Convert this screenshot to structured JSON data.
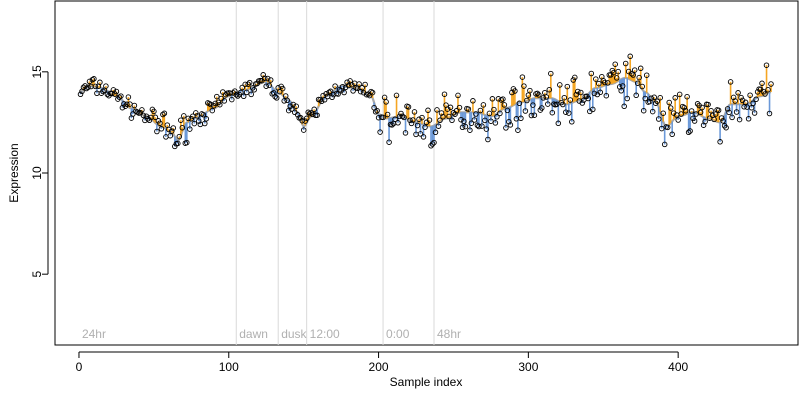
{
  "chart_data": {
    "type": "scatter",
    "title": "",
    "xlabel": "Sample index",
    "ylabel": "Expression",
    "xlim": [
      -16,
      480
    ],
    "ylim": [
      1.5,
      18.5
    ],
    "x_ticks": [
      "0",
      "100",
      "200",
      "300",
      "400"
    ],
    "x_tick_values": [
      0,
      100,
      200,
      300,
      400
    ],
    "y_ticks": [
      "5",
      "10",
      "15"
    ],
    "y_tick_values": [
      5,
      10,
      15
    ],
    "grid": false,
    "series_colors": {
      "points": "#000000",
      "increase": "#f5a623",
      "decrease": "#6a98d8",
      "fit": "#a8a8a8"
    },
    "phase_markers": [
      {
        "label": "24hr",
        "x": 0,
        "line": false
      },
      {
        "label": "dawn",
        "x": 105,
        "line": true
      },
      {
        "label": "dusk",
        "x": 133,
        "line": true
      },
      {
        "label": "12:00",
        "x": 152,
        "line": true
      },
      {
        "label": "0:00",
        "x": 203,
        "line": true
      },
      {
        "label": "48hr",
        "x": 237,
        "line": true
      }
    ],
    "expression_anchors": {
      "x": [
        0,
        8,
        15,
        25,
        35,
        45,
        55,
        62,
        66,
        72,
        80,
        90,
        100,
        110,
        125,
        133,
        140,
        146,
        150,
        155,
        165,
        175,
        185,
        195,
        200,
        205,
        215,
        225,
        235,
        245,
        255,
        265,
        275,
        285,
        295,
        305,
        315,
        325,
        335,
        345,
        355,
        365,
        372,
        378,
        385,
        392,
        400,
        410,
        420,
        428,
        435,
        445,
        455,
        462
      ],
      "y": [
        14.0,
        14.3,
        14.2,
        13.8,
        13.2,
        12.8,
        12.3,
        12.0,
        11.6,
        12.5,
        12.8,
        13.2,
        13.8,
        14.1,
        14.5,
        14.0,
        13.6,
        13.0,
        12.3,
        12.8,
        13.8,
        14.3,
        14.2,
        13.8,
        12.9,
        12.7,
        12.8,
        12.5,
        12.3,
        12.7,
        13.0,
        13.0,
        12.8,
        13.2,
        13.5,
        13.7,
        13.7,
        13.4,
        13.6,
        14.2,
        14.4,
        14.7,
        14.5,
        14.0,
        13.5,
        12.3,
        12.8,
        13.0,
        12.7,
        12.5,
        13.4,
        13.4,
        13.8,
        14.0
      ]
    }
  }
}
